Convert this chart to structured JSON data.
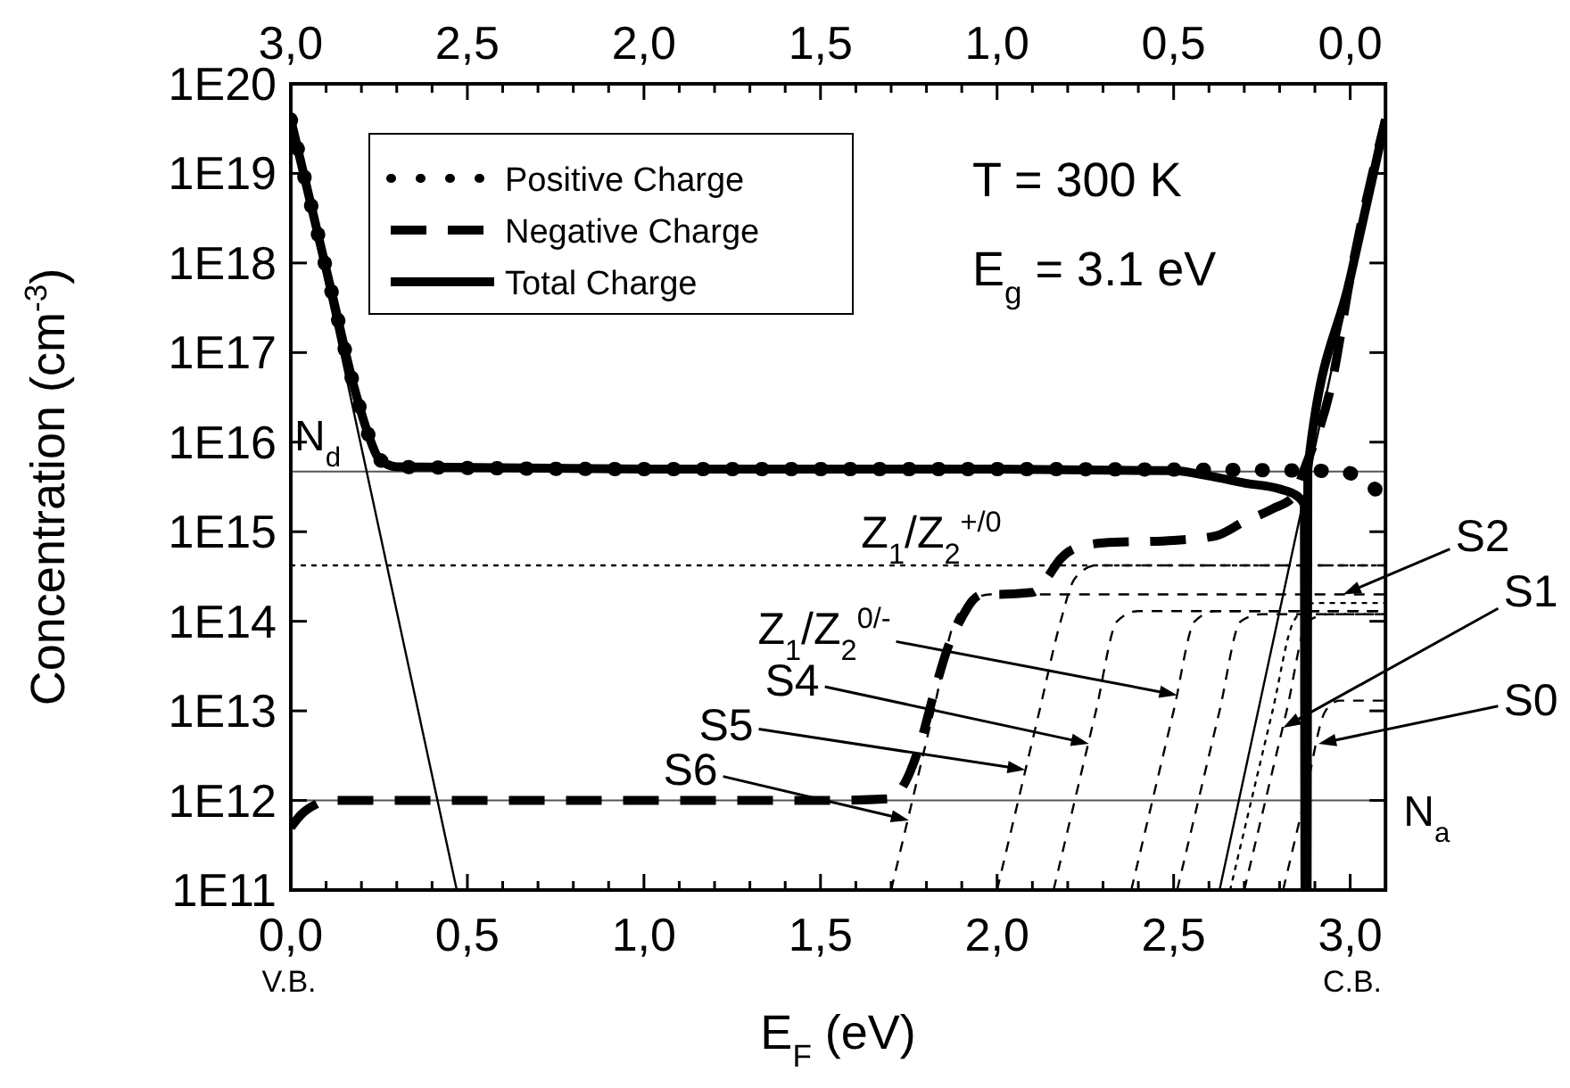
{
  "chart_data": {
    "type": "line",
    "xlabel": "E$_{F}$ (eV)",
    "ylabel": "Concentration (cm$^{-3}$)",
    "log": "y",
    "legend": "top left",
    "xlim": [
      0,
      3.1
    ],
    "ylim": [
      100000000000.0,
      1e+20
    ],
    "x2lim": [
      3.0,
      -0.1
    ],
    "xticks": [
      {
        "value": 0,
        "label": "0,0"
      },
      {
        "value": 0.1,
        "label": null
      },
      {
        "value": 0.2,
        "label": null
      },
      {
        "value": 0.3,
        "label": null
      },
      {
        "value": 0.4,
        "label": null
      },
      {
        "value": 0.5,
        "label": "0,5"
      },
      {
        "value": 0.6,
        "label": null
      },
      {
        "value": 0.7,
        "label": null
      },
      {
        "value": 0.8,
        "label": null
      },
      {
        "value": 0.9,
        "label": null
      },
      {
        "value": 1.0,
        "label": "1,0"
      },
      {
        "value": 1.1,
        "label": null
      },
      {
        "value": 1.2,
        "label": null
      },
      {
        "value": 1.3,
        "label": null
      },
      {
        "value": 1.4,
        "label": null
      },
      {
        "value": 1.5,
        "label": "1,5"
      },
      {
        "value": 1.6,
        "label": null
      },
      {
        "value": 1.7,
        "label": null
      },
      {
        "value": 1.8,
        "label": null
      },
      {
        "value": 1.9,
        "label": null
      },
      {
        "value": 2.0,
        "label": "2,0"
      },
      {
        "value": 2.1,
        "label": null
      },
      {
        "value": 2.2,
        "label": null
      },
      {
        "value": 2.3,
        "label": null
      },
      {
        "value": 2.4,
        "label": null
      },
      {
        "value": 2.5,
        "label": "2,5"
      },
      {
        "value": 2.6,
        "label": null
      },
      {
        "value": 2.7,
        "label": null
      },
      {
        "value": 2.8,
        "label": null
      },
      {
        "value": 2.9,
        "label": null
      },
      {
        "value": 3.0,
        "label": "3,0"
      }
    ],
    "x2ticks": [
      {
        "value": 3.0,
        "label": "3,0"
      },
      {
        "value": 2.9,
        "label": null
      },
      {
        "value": 2.8,
        "label": null
      },
      {
        "value": 2.7,
        "label": null
      },
      {
        "value": 2.6,
        "label": null
      },
      {
        "value": 2.5,
        "label": "2,5"
      },
      {
        "value": 2.4,
        "label": null
      },
      {
        "value": 2.3,
        "label": null
      },
      {
        "value": 2.2,
        "label": null
      },
      {
        "value": 2.1,
        "label": null
      },
      {
        "value": 2.0,
        "label": "2,0"
      },
      {
        "value": 1.9,
        "label": null
      },
      {
        "value": 1.8,
        "label": null
      },
      {
        "value": 1.7,
        "label": null
      },
      {
        "value": 1.6,
        "label": null
      },
      {
        "value": 1.5,
        "label": "1,5"
      },
      {
        "value": 1.4,
        "label": null
      },
      {
        "value": 1.3,
        "label": null
      },
      {
        "value": 1.2,
        "label": null
      },
      {
        "value": 1.1,
        "label": null
      },
      {
        "value": 1.0,
        "label": "1,0"
      },
      {
        "value": 0.9,
        "label": null
      },
      {
        "value": 0.8,
        "label": null
      },
      {
        "value": 0.7,
        "label": null
      },
      {
        "value": 0.6,
        "label": null
      },
      {
        "value": 0.5,
        "label": "0,5"
      },
      {
        "value": 0.4,
        "label": null
      },
      {
        "value": 0.3,
        "label": null
      },
      {
        "value": 0.2,
        "label": null
      },
      {
        "value": 0.1,
        "label": null
      },
      {
        "value": 0.0,
        "label": "0,0"
      }
    ],
    "yticks": [
      {
        "value": 100000000000.0,
        "label": "1E11"
      },
      {
        "value": 1000000000000.0,
        "label": "1E12"
      },
      {
        "value": 10000000000000.0,
        "label": "1E13"
      },
      {
        "value": 100000000000000.0,
        "label": "1E14"
      },
      {
        "value": 1000000000000000.0,
        "label": "1E15"
      },
      {
        "value": 1e+16,
        "label": "1E16"
      },
      {
        "value": 1e+17,
        "label": "1E17"
      },
      {
        "value": 1e+18,
        "label": "1E18"
      },
      {
        "value": 1e+19,
        "label": "1E19"
      },
      {
        "value": 1e+20,
        "label": "1E20"
      }
    ],
    "series": [
      {
        "name": "Positive Charge",
        "color": "#000000",
        "line_style": "dotted",
        "x": [
          0,
          0.06,
          0.12,
          0.18,
          0.22,
          0.25,
          0.3,
          1.0,
          2.0,
          2.9,
          2.97,
          3.03,
          3.07,
          3.1
        ],
        "values": [
          4e+19,
          4e+18,
          4e+17,
          4e+16,
          1.2e+16,
          6500000000000000.0,
          5300000000000000.0,
          5000000000000000.0,
          5000000000000000.0,
          4800000000000000.0,
          4700000000000000.0,
          4000000000000000.0,
          3000000000000000.0,
          2500000000000000.0
        ]
      },
      {
        "name": "Negative Charge",
        "color": "#000000",
        "line_style": "dashed",
        "x": [
          0,
          0.03,
          0.07,
          0.1,
          0.5,
          1.0,
          1.5,
          1.7,
          1.74,
          1.78,
          1.82,
          1.86,
          1.9,
          1.93,
          1.96,
          2.0,
          2.1,
          2.14,
          2.18,
          2.22,
          2.3,
          2.5,
          2.62,
          2.7,
          2.78,
          2.84,
          2.87,
          2.95,
          3.0,
          3.1
        ],
        "values": [
          500000000000.0,
          700000000000.0,
          900000000000.0,
          1000000000000.0,
          1000000000000.0,
          1000000000000.0,
          1000000000000.0,
          1050000000000.0,
          1600000000000.0,
          4000000000000.0,
          15000000000000.0,
          50000000000000.0,
          110000000000000.0,
          170000000000000.0,
          200000000000000.0,
          200000000000000.0,
          210000000000000.0,
          300000000000000.0,
          500000000000000.0,
          650000000000000.0,
          750000000000000.0,
          800000000000000.0,
          900000000000000.0,
          1300000000000000.0,
          1800000000000000.0,
          2500000000000000.0,
          5000000000000000.0,
          5e+16,
          6.8e+17,
          4e+19
        ]
      },
      {
        "name": "Total Charge",
        "color": "#000000",
        "line_style": "solid",
        "x": [
          0,
          0.06,
          0.12,
          0.18,
          0.22,
          0.25,
          0.3,
          1.0,
          2.0,
          2.5,
          2.6,
          2.7,
          2.8,
          2.85,
          2.87,
          2.872,
          2.878,
          2.88,
          3.0,
          3.1
        ],
        "values": [
          4e+19,
          4e+18,
          4e+17,
          4e+16,
          1.2e+16,
          6500000000000000.0,
          5300000000000000.0,
          5000000000000000.0,
          5000000000000000.0,
          4800000000000000.0,
          4200000000000000.0,
          3500000000000000.0,
          3000000000000000.0,
          2500000000000000.0,
          2000000000000000.0,
          100000000000.0,
          100000000000.0,
          5000000000000000.0,
          6.8e+17,
          4e+19
        ]
      },
      {
        "color": "#000000",
        "line_style": "solid",
        "x": [
          0,
          0.47
        ],
        "values": [
          4e+19,
          100000000000.0
        ]
      },
      {
        "color": "#000000",
        "line_style": "solid",
        "x": [
          2.63,
          3.1
        ],
        "values": [
          100000000000.0,
          4e+19
        ]
      },
      {
        "color": "#000000",
        "line_style": "dotted",
        "x": [
          0,
          3.1
        ],
        "values": [
          420000000000000.0,
          420000000000000.0
        ]
      },
      {
        "color": "#000000",
        "line_style": "dashed",
        "x": [
          1.7,
          1.76,
          1.82,
          1.88,
          1.94,
          1.98,
          2.05,
          3.1
        ],
        "values": [
          100000000000.0,
          1000000000000.0,
          10000000000000.0,
          100000000000000.0,
          180000000000000.0,
          200000000000000.0,
          200000000000000.0,
          200000000000000.0
        ]
      },
      {
        "color": "#000000",
        "line_style": "dashed",
        "x": [
          2.0,
          2.06,
          2.12,
          2.18,
          2.22,
          2.28,
          3.1
        ],
        "values": [
          100000000000.0,
          1000000000000.0,
          10000000000000.0,
          100000000000000.0,
          300000000000000.0,
          420000000000000.0,
          420000000000000.0
        ]
      },
      {
        "color": "#000000",
        "line_style": "dashed",
        "x": [
          2.16,
          2.22,
          2.28,
          2.34,
          2.4,
          3.1
        ],
        "values": [
          100000000000.0,
          1000000000000.0,
          10000000000000.0,
          100000000000000.0,
          130000000000000.0,
          130000000000000.0
        ]
      },
      {
        "color": "#000000",
        "line_style": "dashed",
        "x": [
          2.38,
          2.44,
          2.5,
          2.56,
          2.62,
          3.1
        ],
        "values": [
          100000000000.0,
          1000000000000.0,
          10000000000000.0,
          100000000000000.0,
          130000000000000.0,
          130000000000000.0
        ]
      },
      {
        "color": "#000000",
        "line_style": "dashed",
        "x": [
          2.51,
          2.57,
          2.63,
          2.69,
          2.75,
          3.1
        ],
        "values": [
          100000000000.0,
          1000000000000.0,
          10000000000000.0,
          100000000000000.0,
          120000000000000.0,
          120000000000000.0
        ]
      },
      {
        "color": "#000000",
        "line_style": "dotted",
        "x": [
          2.66,
          2.72,
          2.78,
          2.84,
          2.9,
          3.1
        ],
        "values": [
          100000000000.0,
          1000000000000.0,
          10000000000000.0,
          100000000000000.0,
          160000000000000.0,
          160000000000000.0
        ]
      },
      {
        "color": "#000000",
        "line_style": "dashed",
        "x": [
          2.7,
          2.76,
          2.82,
          2.88,
          2.94,
          3.1
        ],
        "values": [
          100000000000.0,
          1000000000000.0,
          10000000000000.0,
          100000000000000.0,
          120000000000000.0,
          120000000000000.0
        ]
      },
      {
        "color": "#000000",
        "line_style": "dashed",
        "x": [
          2.81,
          2.87,
          2.93,
          2.97,
          3.1
        ],
        "values": [
          100000000000.0,
          1000000000000.0,
          10000000000000.0,
          13000000000000.0,
          13000000000000.0
        ]
      }
    ],
    "ref_lines": [
      {
        "axis": "y",
        "value": 4700000000000000.0,
        "label": "N$_{d}$",
        "color": "#555555"
      },
      {
        "axis": "y",
        "value": 1000000000000.0,
        "label": "N$_{a}$",
        "color": "#555555"
      }
    ],
    "annotations": [
      "T = 300 K",
      "E$_{g}$ = 3.1 eV",
      "V.B.",
      "C.B.",
      {
        "text": "S6",
        "x": 1.75,
        "y": 600000000000.0
      },
      {
        "text": "S5",
        "x": 2.08,
        "y": 2200000000000.0
      },
      {
        "text": "S4",
        "x": 2.26,
        "y": 4300000000000.0
      },
      {
        "text": "Z$_{1}$/Z$_{2}$$^{0/-}$",
        "x": 2.51,
        "y": 15000000000000.0
      },
      {
        "text": "Z$_{1}$/Z$_{2}$$^{+/0}$",
        "x": 2.02,
        "y": 420000000000000.0
      },
      {
        "text": "S2",
        "x": 2.98,
        "y": 200000000000000.0
      },
      {
        "text": "S1",
        "x": 2.81,
        "y": 6500000000000.0
      },
      {
        "text": "S0",
        "x": 2.91,
        "y": 4300000000000.0
      }
    ]
  }
}
